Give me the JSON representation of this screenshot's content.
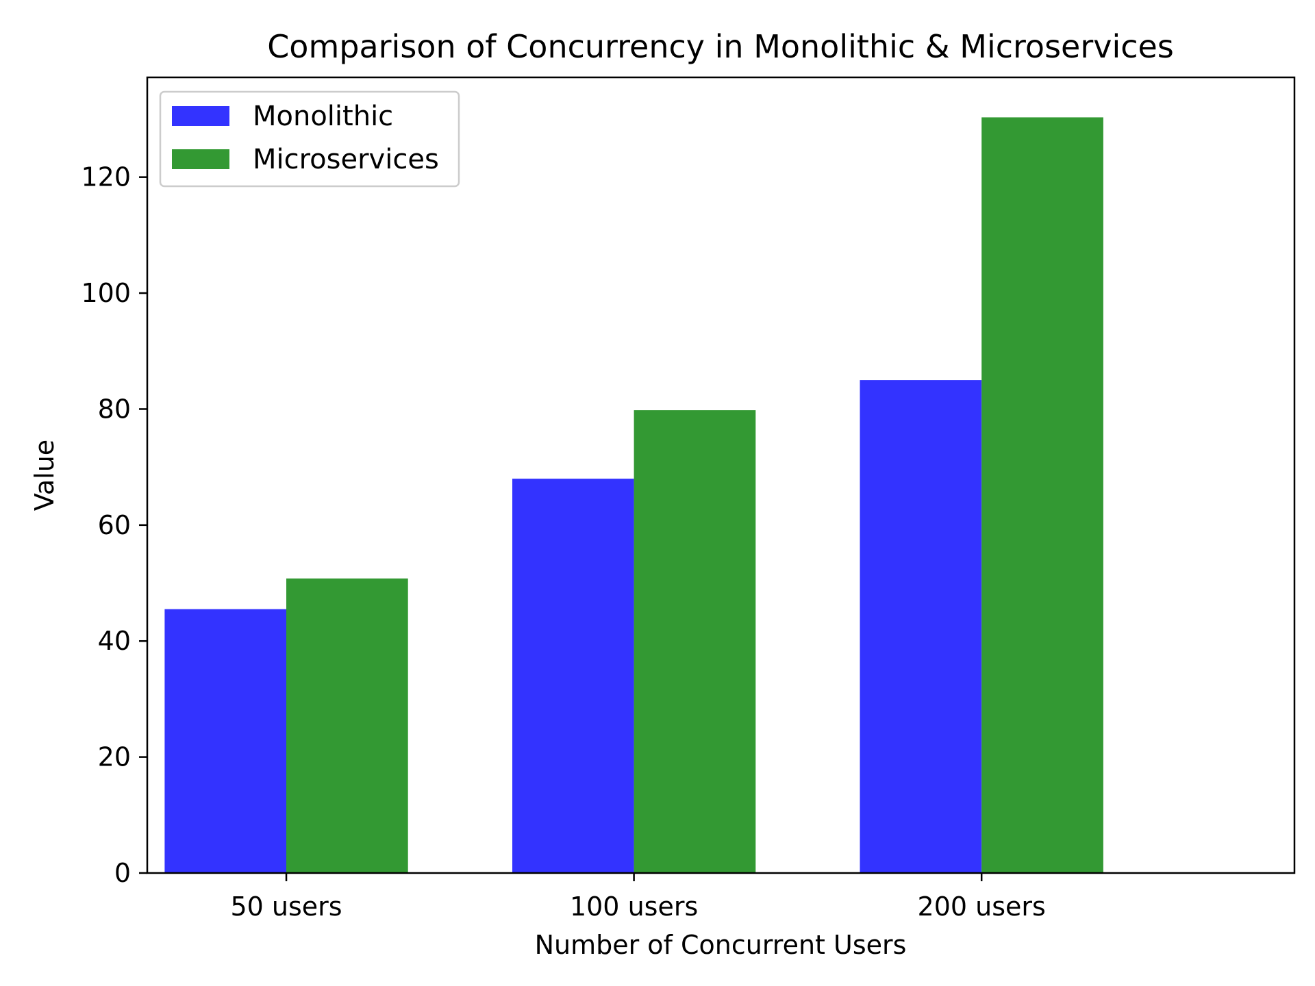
{
  "chart_data": {
    "type": "bar",
    "title": "Comparison of Concurrency in Monolithic & Microservices",
    "xlabel": "Number of Concurrent Users",
    "ylabel": "Value",
    "categories": [
      "50 users",
      "100 users",
      "200 users"
    ],
    "series": [
      {
        "name": "Monolithic",
        "values": [
          45.5,
          68,
          85
        ],
        "color": "#3333ff"
      },
      {
        "name": "Microservices",
        "values": [
          50.8,
          79.8,
          130.3
        ],
        "color": "#339933"
      }
    ],
    "ylim": [
      0,
      137.2
    ],
    "yticks": [
      0,
      20,
      40,
      60,
      80,
      100,
      120
    ],
    "legend_position": "top-left",
    "grid": false
  }
}
